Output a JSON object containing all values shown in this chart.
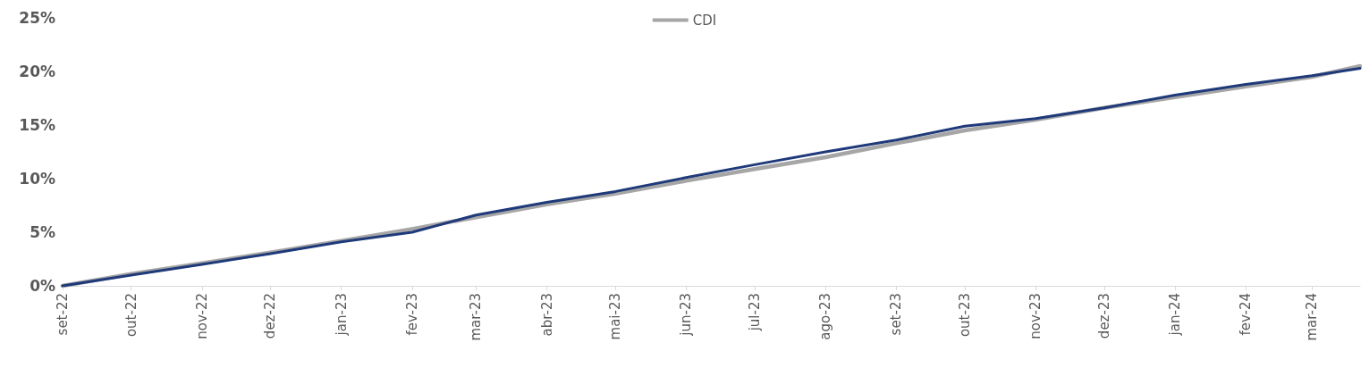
{
  "chart_data": {
    "type": "line",
    "x": [
      "2022-09-01",
      "2022-10-01",
      "2022-11-01",
      "2022-12-01",
      "2023-01-01",
      "2023-02-01",
      "2023-03-01",
      "2023-04-01",
      "2023-05-01",
      "2023-06-01",
      "2023-07-01",
      "2023-08-01",
      "2023-09-01",
      "2023-10-01",
      "2023-11-01",
      "2023-12-01",
      "2024-01-01",
      "2024-02-01",
      "2024-03-01",
      "2024-03-22"
    ],
    "series": [
      {
        "color": "#1f3a7a",
        "values": [
          0,
          1.0,
          2.0,
          3.0,
          4.1,
          5.0,
          6.6,
          7.8,
          8.8,
          10.1,
          11.3,
          12.5,
          13.6,
          14.9,
          15.6,
          16.6,
          17.8,
          18.8,
          19.6,
          20.3
        ]
      },
      {
        "name": "CDI",
        "color": "#a6a6a6",
        "values": [
          0,
          1.1,
          2.1,
          3.1,
          4.2,
          5.3,
          6.4,
          7.6,
          8.6,
          9.8,
          10.9,
          12.0,
          13.3,
          14.5,
          15.5,
          16.6,
          17.6,
          18.6,
          19.5,
          20.5
        ]
      }
    ],
    "xlim": [
      "2022-09-01",
      "2024-03-22"
    ],
    "xticks": [
      {
        "value": "2022-09-01",
        "label": "set-22"
      },
      {
        "value": "2022-10-01",
        "label": "out-22"
      },
      {
        "value": "2022-11-01",
        "label": "nov-22"
      },
      {
        "value": "2022-12-01",
        "label": "dez-22"
      },
      {
        "value": "2023-01-01",
        "label": "jan-23"
      },
      {
        "value": "2023-02-01",
        "label": "fev-23"
      },
      {
        "value": "2023-03-01",
        "label": "mar-23"
      },
      {
        "value": "2023-04-01",
        "label": "abr-23"
      },
      {
        "value": "2023-05-01",
        "label": "mai-23"
      },
      {
        "value": "2023-06-01",
        "label": "jun-23"
      },
      {
        "value": "2023-07-01",
        "label": "jul-23"
      },
      {
        "value": "2023-08-01",
        "label": "ago-23"
      },
      {
        "value": "2023-09-01",
        "label": "set-23"
      },
      {
        "value": "2023-10-01",
        "label": "out-23"
      },
      {
        "value": "2023-11-01",
        "label": "nov-23"
      },
      {
        "value": "2023-12-01",
        "label": "dez-23"
      },
      {
        "value": "2024-01-01",
        "label": "jan-24"
      },
      {
        "value": "2024-02-01",
        "label": "fev-24"
      },
      {
        "value": "2024-03-01",
        "label": "mar-24"
      }
    ],
    "ylim": [
      0,
      25
    ],
    "yticks": [
      {
        "value": 0,
        "label": "0%"
      },
      {
        "value": 5,
        "label": "5%"
      },
      {
        "value": 10,
        "label": "10%"
      },
      {
        "value": 15,
        "label": "15%"
      },
      {
        "value": 20,
        "label": "20%"
      },
      {
        "value": 25,
        "label": "25%"
      }
    ],
    "grid": false,
    "legend": "top",
    "marker": "none",
    "line_style": "solid"
  }
}
